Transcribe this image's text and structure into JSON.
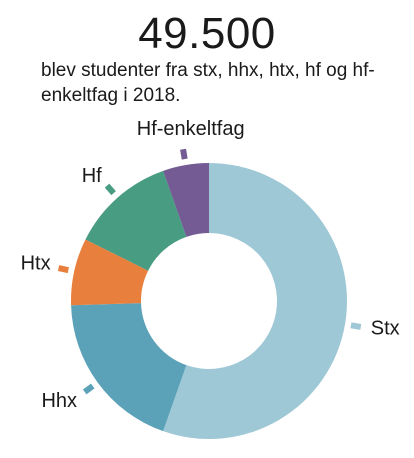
{
  "headline": "49.500",
  "subtitle": "blev studenter fra stx, hhx, htx, hf og hf-enkeltfag i 2018.",
  "chart_data": {
    "type": "pie",
    "variant": "donut",
    "start_angle_deg": 0,
    "direction": "clockwise",
    "slices": [
      {
        "label": "Stx",
        "value": 56.5,
        "color": "#9ec8d6"
      },
      {
        "label": "Hhx",
        "value": 19.5,
        "color": "#5ba2b8"
      },
      {
        "label": "Htx",
        "value": 8.0,
        "color": "#e97f3c"
      },
      {
        "label": "Hf",
        "value": 12.5,
        "color": "#479c82"
      },
      {
        "label": "Hf-enkeltfag",
        "value": 5.5,
        "color": "#745b93"
      }
    ]
  }
}
